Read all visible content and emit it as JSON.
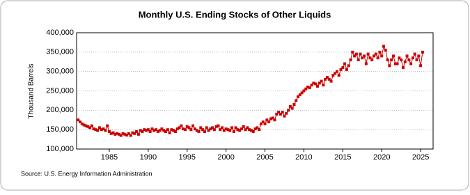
{
  "chart_data": {
    "type": "line",
    "title": "Monthly U.S. Ending Stocks of Other Liquids",
    "y_label": "Thousand Barrels",
    "source": "Source: U.S. Energy Information Administration",
    "color": "#cc0000",
    "grid": true,
    "xlim": [
      1980.8,
      2026.6
    ],
    "xticks": [
      1985,
      1990,
      1995,
      2000,
      2005,
      2010,
      2015,
      2020,
      2025
    ],
    "ylim": [
      100000,
      400000
    ],
    "yticks": [
      {
        "value": 100000,
        "label": "100,000"
      },
      {
        "value": 150000,
        "label": "150,000"
      },
      {
        "value": 200000,
        "label": "200,000"
      },
      {
        "value": 250000,
        "label": "250,000"
      },
      {
        "value": 300000,
        "label": "300,000"
      },
      {
        "value": 350000,
        "label": "350,000"
      },
      {
        "value": 400000,
        "label": "400,000"
      }
    ],
    "x": [
      1981,
      1981.25,
      1981.5,
      1981.75,
      1982,
      1982.25,
      1982.5,
      1982.75,
      1983,
      1983.25,
      1983.5,
      1983.75,
      1984,
      1984.25,
      1984.5,
      1984.75,
      1985,
      1985.25,
      1985.5,
      1985.75,
      1986,
      1986.25,
      1986.5,
      1986.75,
      1987,
      1987.25,
      1987.5,
      1987.75,
      1988,
      1988.25,
      1988.5,
      1988.75,
      1989,
      1989.25,
      1989.5,
      1989.75,
      1990,
      1990.25,
      1990.5,
      1990.75,
      1991,
      1991.25,
      1991.5,
      1991.75,
      1992,
      1992.25,
      1992.5,
      1992.75,
      1993,
      1993.25,
      1993.5,
      1993.75,
      1994,
      1994.25,
      1994.5,
      1994.75,
      1995,
      1995.25,
      1995.5,
      1995.75,
      1996,
      1996.25,
      1996.5,
      1996.75,
      1997,
      1997.25,
      1997.5,
      1997.75,
      1998,
      1998.25,
      1998.5,
      1998.75,
      1999,
      1999.25,
      1999.5,
      1999.75,
      2000,
      2000.25,
      2000.5,
      2000.75,
      2001,
      2001.25,
      2001.5,
      2001.75,
      2002,
      2002.25,
      2002.5,
      2002.75,
      2003,
      2003.25,
      2003.5,
      2003.75,
      2004,
      2004.25,
      2004.5,
      2004.75,
      2005,
      2005.25,
      2005.5,
      2005.75,
      2006,
      2006.25,
      2006.5,
      2006.75,
      2007,
      2007.25,
      2007.5,
      2007.75,
      2008,
      2008.25,
      2008.5,
      2008.75,
      2009,
      2009.25,
      2009.5,
      2009.75,
      2010,
      2010.25,
      2010.5,
      2010.75,
      2011,
      2011.25,
      2011.5,
      2011.75,
      2012,
      2012.25,
      2012.5,
      2012.75,
      2013,
      2013.25,
      2013.5,
      2013.75,
      2014,
      2014.25,
      2014.5,
      2014.75,
      2015,
      2015.25,
      2015.5,
      2015.75,
      2016,
      2016.25,
      2016.5,
      2016.75,
      2017,
      2017.25,
      2017.5,
      2017.75,
      2018,
      2018.25,
      2018.5,
      2018.75,
      2019,
      2019.25,
      2019.5,
      2019.75,
      2020,
      2020.25,
      2020.5,
      2020.75,
      2021,
      2021.25,
      2021.5,
      2021.75,
      2022,
      2022.25,
      2022.5,
      2022.75,
      2023,
      2023.25,
      2023.5,
      2023.75,
      2024,
      2024.25,
      2024.5,
      2024.75,
      2025,
      2025.25
    ],
    "values": [
      175000,
      170000,
      165000,
      162000,
      160000,
      158000,
      155000,
      160000,
      152000,
      150000,
      148000,
      155000,
      150000,
      152000,
      148000,
      160000,
      145000,
      140000,
      142000,
      138000,
      140000,
      138000,
      135000,
      140000,
      138000,
      136000,
      140000,
      135000,
      142000,
      140000,
      145000,
      138000,
      148000,
      145000,
      150000,
      148000,
      150000,
      145000,
      152000,
      148000,
      150000,
      145000,
      148000,
      152000,
      148000,
      145000,
      150000,
      142000,
      150000,
      148000,
      145000,
      152000,
      155000,
      160000,
      152000,
      150000,
      158000,
      155000,
      150000,
      160000,
      152000,
      148000,
      145000,
      155000,
      150000,
      145000,
      155000,
      148000,
      152000,
      155000,
      150000,
      158000,
      160000,
      150000,
      155000,
      148000,
      152000,
      150000,
      148000,
      155000,
      145000,
      155000,
      150000,
      148000,
      152000,
      158000,
      150000,
      155000,
      150000,
      148000,
      145000,
      152000,
      155000,
      150000,
      165000,
      170000,
      165000,
      175000,
      170000,
      178000,
      180000,
      175000,
      190000,
      195000,
      190000,
      195000,
      185000,
      192000,
      200000,
      210000,
      205000,
      215000,
      225000,
      235000,
      240000,
      245000,
      250000,
      255000,
      260000,
      258000,
      265000,
      270000,
      268000,
      262000,
      270000,
      275000,
      265000,
      280000,
      285000,
      280000,
      275000,
      290000,
      295000,
      300000,
      290000,
      305000,
      310000,
      320000,
      305000,
      315000,
      330000,
      350000,
      340000,
      345000,
      330000,
      345000,
      335000,
      340000,
      320000,
      345000,
      335000,
      330000,
      340000,
      345000,
      335000,
      350000,
      340000,
      365000,
      355000,
      330000,
      315000,
      330000,
      340000,
      320000,
      320000,
      335000,
      330000,
      310000,
      325000,
      340000,
      330000,
      320000,
      335000,
      345000,
      330000,
      340000,
      315000,
      350000
    ]
  }
}
